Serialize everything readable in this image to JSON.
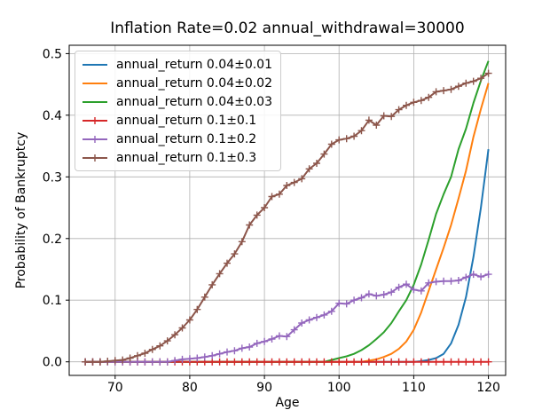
{
  "chart_data": {
    "type": "line",
    "title": "Inflation Rate=0.02 annual_withdrawal=30000",
    "xlabel": "Age",
    "ylabel": "Probability of Bankruptcy",
    "xlim": [
      63.85,
      122.31
    ],
    "ylim": [
      -0.022,
      0.5135
    ],
    "xticks": [
      70,
      80,
      90,
      100,
      110,
      120
    ],
    "xtick_labels": [
      "70",
      "80",
      "90",
      "100",
      "110",
      "120"
    ],
    "yticks": [
      0.0,
      0.1,
      0.2,
      0.3,
      0.4,
      0.5
    ],
    "ytick_labels": [
      "0.0",
      "0.1",
      "0.2",
      "0.3",
      "0.4",
      "0.5"
    ],
    "grid": true,
    "grid_color": "#b0b0b0",
    "legend_position": "upper-left",
    "x": [
      66,
      67,
      68,
      69,
      70,
      71,
      72,
      73,
      74,
      75,
      76,
      77,
      78,
      79,
      80,
      81,
      82,
      83,
      84,
      85,
      86,
      87,
      88,
      89,
      90,
      91,
      92,
      93,
      94,
      95,
      96,
      97,
      98,
      99,
      100,
      101,
      102,
      103,
      104,
      105,
      106,
      107,
      108,
      109,
      110,
      111,
      112,
      113,
      114,
      115,
      116,
      117,
      118,
      119,
      120
    ],
    "series": [
      {
        "name": "annual_return 0.04±0.01",
        "color": "#1f77b4",
        "marker": "none",
        "values": [
          0,
          0,
          0,
          0,
          0,
          0,
          0,
          0,
          0,
          0,
          0,
          0,
          0,
          0,
          0,
          0,
          0,
          0,
          0,
          0,
          0,
          0,
          0,
          0,
          0,
          0,
          0,
          0,
          0,
          0,
          0,
          0,
          0,
          0,
          0,
          0,
          0,
          0,
          0,
          0,
          0,
          0,
          0,
          0,
          0,
          0.001,
          0.003,
          0.006,
          0.013,
          0.03,
          0.06,
          0.105,
          0.17,
          0.25,
          0.345
        ]
      },
      {
        "name": "annual_return 0.04±0.02",
        "color": "#ff7f0e",
        "marker": "none",
        "values": [
          0,
          0,
          0,
          0,
          0,
          0,
          0,
          0,
          0,
          0,
          0,
          0,
          0,
          0,
          0,
          0,
          0,
          0,
          0,
          0,
          0,
          0,
          0,
          0,
          0,
          0,
          0,
          0,
          0,
          0,
          0,
          0,
          0,
          0,
          0,
          0,
          0,
          0,
          0.002,
          0.004,
          0.008,
          0.013,
          0.021,
          0.033,
          0.052,
          0.08,
          0.115,
          0.15,
          0.185,
          0.222,
          0.265,
          0.31,
          0.365,
          0.41,
          0.452
        ]
      },
      {
        "name": "annual_return 0.04±0.03",
        "color": "#2ca02c",
        "marker": "none",
        "values": [
          0,
          0,
          0,
          0,
          0,
          0,
          0,
          0,
          0,
          0,
          0,
          0,
          0,
          0,
          0,
          0,
          0,
          0,
          0,
          0,
          0,
          0,
          0,
          0,
          0,
          0,
          0,
          0,
          0,
          0,
          0,
          0,
          0,
          0.003,
          0.006,
          0.009,
          0.013,
          0.019,
          0.027,
          0.037,
          0.048,
          0.063,
          0.082,
          0.1,
          0.125,
          0.158,
          0.198,
          0.24,
          0.272,
          0.3,
          0.345,
          0.378,
          0.42,
          0.456,
          0.488
        ]
      },
      {
        "name": "annual_return 0.1±0.1",
        "color": "#d62728",
        "marker": "plus",
        "values": [
          0,
          0,
          0,
          0,
          0,
          0,
          0,
          0,
          0,
          0,
          0,
          0,
          0,
          0,
          0,
          0,
          0,
          0,
          0,
          0,
          0,
          0,
          0,
          0,
          0,
          0,
          0,
          0,
          0,
          0,
          0,
          0,
          0,
          0,
          0,
          0,
          0,
          0,
          0,
          0,
          0,
          0,
          0,
          0,
          0,
          0,
          0,
          0,
          0,
          0,
          0,
          0,
          0,
          0,
          0
        ]
      },
      {
        "name": "annual_return 0.1±0.2",
        "color": "#9467bd",
        "marker": "plus",
        "values": [
          0,
          0,
          0,
          0,
          0,
          0,
          0,
          0,
          0,
          0,
          0,
          0,
          0.002,
          0.004,
          0.005,
          0.006,
          0.008,
          0.01,
          0.013,
          0.016,
          0.018,
          0.022,
          0.024,
          0.03,
          0.033,
          0.037,
          0.042,
          0.041,
          0.052,
          0.063,
          0.068,
          0.072,
          0.076,
          0.082,
          0.095,
          0.094,
          0.1,
          0.104,
          0.11,
          0.107,
          0.109,
          0.113,
          0.121,
          0.126,
          0.117,
          0.115,
          0.128,
          0.13,
          0.131,
          0.131,
          0.132,
          0.137,
          0.142,
          0.138,
          0.142
        ]
      },
      {
        "name": "annual_return 0.1±0.3",
        "color": "#8c564b",
        "marker": "plus",
        "values": [
          0,
          0,
          0,
          0.001,
          0.002,
          0.003,
          0.006,
          0.01,
          0.014,
          0.02,
          0.026,
          0.034,
          0.044,
          0.055,
          0.068,
          0.085,
          0.105,
          0.125,
          0.143,
          0.16,
          0.175,
          0.195,
          0.222,
          0.238,
          0.25,
          0.268,
          0.272,
          0.286,
          0.291,
          0.297,
          0.313,
          0.322,
          0.337,
          0.353,
          0.36,
          0.362,
          0.366,
          0.375,
          0.392,
          0.384,
          0.399,
          0.398,
          0.409,
          0.416,
          0.421,
          0.424,
          0.429,
          0.438,
          0.44,
          0.442,
          0.447,
          0.452,
          0.455,
          0.46,
          0.468
        ]
      }
    ]
  }
}
